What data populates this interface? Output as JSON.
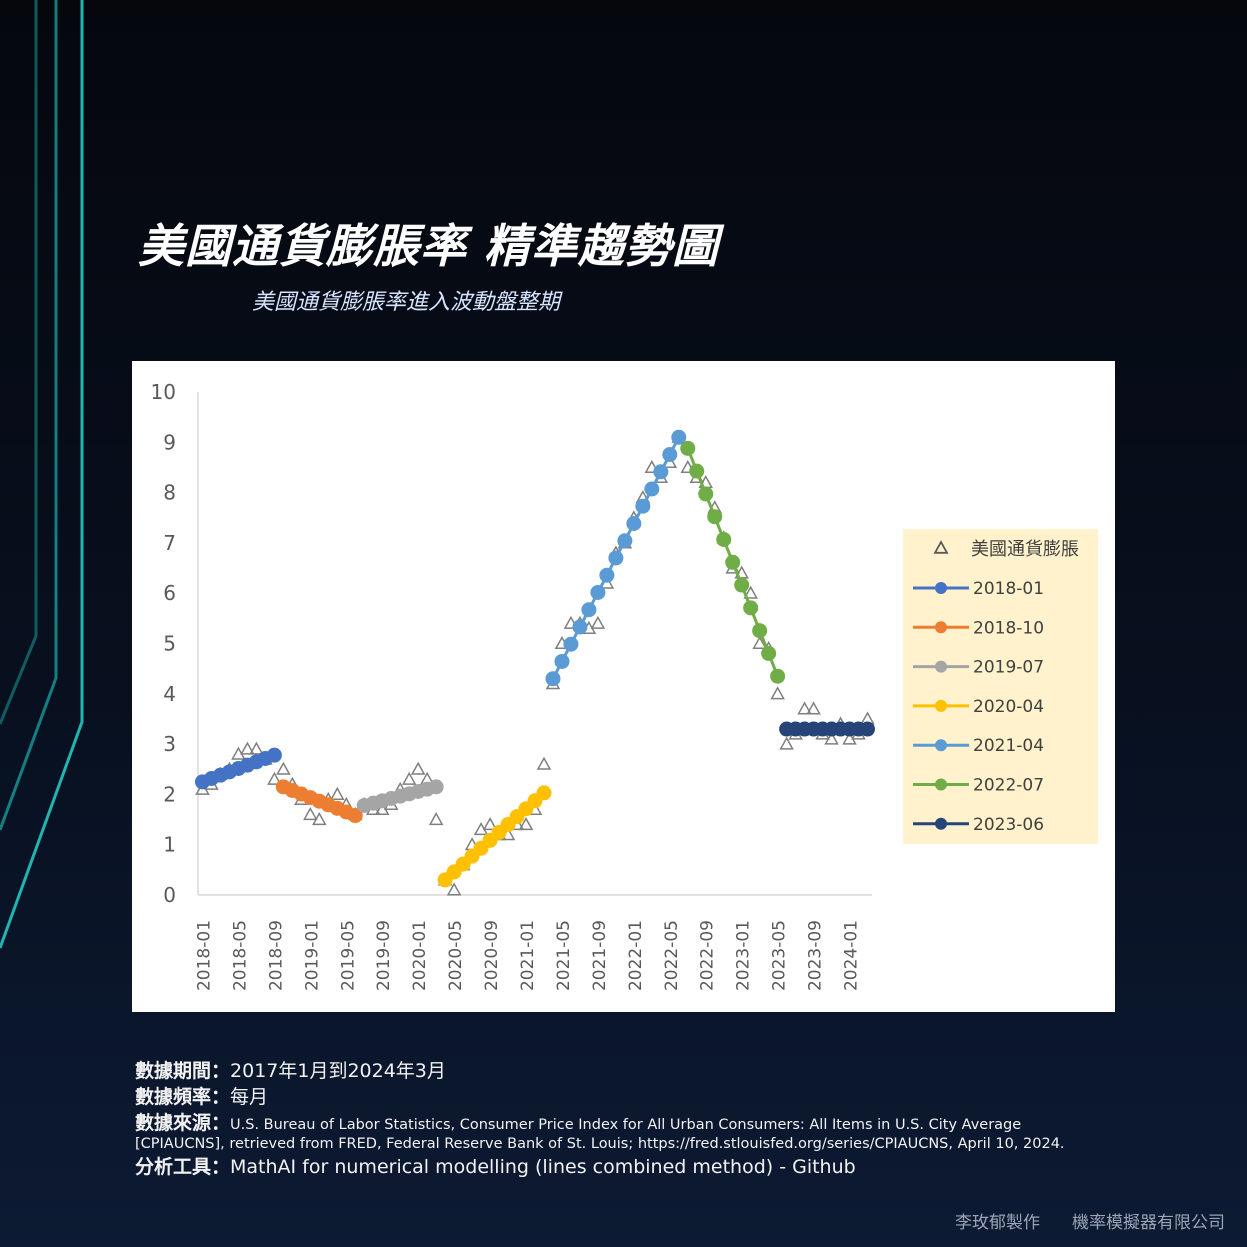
{
  "header": {
    "title": "美國通貨膨脹率 精準趨勢圖",
    "subtitle": "美國通貨膨脹率進入波動盤整期"
  },
  "chart_data": {
    "type": "scatter",
    "title": "",
    "xlabel": "",
    "ylabel": "",
    "ylim": [
      0,
      10
    ],
    "y_ticks": [
      "0",
      "1",
      "2",
      "3",
      "4",
      "5",
      "6",
      "7",
      "8",
      "9",
      "10"
    ],
    "x_ticks": [
      "2018-01",
      "2018-05",
      "2018-09",
      "2019-01",
      "2019-05",
      "2019-09",
      "2020-01",
      "2020-05",
      "2020-09",
      "2021-01",
      "2021-05",
      "2021-09",
      "2022-01",
      "2022-05",
      "2022-09",
      "2023-01",
      "2023-05",
      "2023-09",
      "2024-01"
    ],
    "x_range": [
      "2018-01",
      "2024-03"
    ],
    "grid": false,
    "legend_placement": "right",
    "observed": {
      "name": "美國通貨膨脹",
      "marker": "triangle-open",
      "color": "#7f7f7f",
      "x": [
        "2018-01",
        "2018-02",
        "2018-03",
        "2018-04",
        "2018-05",
        "2018-06",
        "2018-07",
        "2018-08",
        "2018-09",
        "2018-10",
        "2018-11",
        "2018-12",
        "2019-01",
        "2019-02",
        "2019-03",
        "2019-04",
        "2019-05",
        "2019-06",
        "2019-07",
        "2019-08",
        "2019-09",
        "2019-10",
        "2019-11",
        "2019-12",
        "2020-01",
        "2020-02",
        "2020-03",
        "2020-04",
        "2020-05",
        "2020-06",
        "2020-07",
        "2020-08",
        "2020-09",
        "2020-10",
        "2020-11",
        "2020-12",
        "2021-01",
        "2021-02",
        "2021-03",
        "2021-04",
        "2021-05",
        "2021-06",
        "2021-07",
        "2021-08",
        "2021-09",
        "2021-10",
        "2021-11",
        "2021-12",
        "2022-01",
        "2022-02",
        "2022-03",
        "2022-04",
        "2022-05",
        "2022-06",
        "2022-07",
        "2022-08",
        "2022-09",
        "2022-10",
        "2022-11",
        "2022-12",
        "2023-01",
        "2023-02",
        "2023-03",
        "2023-04",
        "2023-05",
        "2023-06",
        "2023-07",
        "2023-08",
        "2023-09",
        "2023-10",
        "2023-11",
        "2023-12",
        "2024-01",
        "2024-02",
        "2024-03"
      ],
      "y": [
        2.1,
        2.2,
        2.4,
        2.5,
        2.8,
        2.9,
        2.9,
        2.7,
        2.3,
        2.5,
        2.2,
        1.9,
        1.6,
        1.5,
        1.9,
        2.0,
        1.8,
        1.6,
        1.8,
        1.7,
        1.7,
        1.8,
        2.1,
        2.3,
        2.5,
        2.3,
        1.5,
        0.3,
        0.1,
        0.6,
        1.0,
        1.3,
        1.4,
        1.2,
        1.2,
        1.4,
        1.4,
        1.7,
        2.6,
        4.2,
        5.0,
        5.4,
        5.4,
        5.3,
        5.4,
        6.2,
        6.8,
        7.0,
        7.5,
        7.9,
        8.5,
        8.3,
        8.6,
        9.1,
        8.5,
        8.3,
        8.2,
        7.7,
        7.1,
        6.5,
        6.4,
        6.0,
        5.0,
        4.9,
        4.0,
        3.0,
        3.2,
        3.7,
        3.7,
        3.2,
        3.1,
        3.4,
        3.1,
        3.2,
        3.5
      ]
    },
    "series": [
      {
        "name": "2018-01",
        "color": "#4472c4",
        "x_start": "2018-01",
        "x_end": "2018-09",
        "y_start": 2.25,
        "y_end": 2.78
      },
      {
        "name": "2018-10",
        "color": "#ed7d31",
        "x_start": "2018-10",
        "x_end": "2019-06",
        "y_start": 2.15,
        "y_end": 1.58
      },
      {
        "name": "2019-07",
        "color": "#a5a5a5",
        "x_start": "2019-07",
        "x_end": "2020-03",
        "y_start": 1.78,
        "y_end": 2.15
      },
      {
        "name": "2020-04",
        "color": "#ffc000",
        "x_start": "2020-04",
        "x_end": "2021-03",
        "y_start": 0.3,
        "y_end": 2.03
      },
      {
        "name": "2021-04",
        "color": "#5b9bd5",
        "x_start": "2021-04",
        "x_end": "2022-06",
        "y_start": 4.3,
        "y_end": 9.1
      },
      {
        "name": "2022-07",
        "color": "#70ad47",
        "x_start": "2022-07",
        "x_end": "2023-05",
        "y_start": 8.88,
        "y_end": 4.35
      },
      {
        "name": "2023-06",
        "color": "#264478",
        "x_start": "2023-06",
        "x_end": "2024-03",
        "y_start": 3.3,
        "y_end": 3.3
      }
    ]
  },
  "footer": {
    "period_label": "數據期間：",
    "period_value": "2017年1月到2024年3月",
    "freq_label": "數據頻率：",
    "freq_value": "每月",
    "source_label": "數據來源：",
    "source_value": "U.S. Bureau of Labor Statistics, Consumer Price Index for All Urban Consumers: All Items in U.S. City Average",
    "source_value_2": "[CPIAUCNS], retrieved from FRED, Federal Reserve Bank of St. Louis; https://fred.stlouisfed.org/series/CPIAUCNS, April 10, 2024.",
    "tool_label": "分析工具：",
    "tool_value": "MathAI  for numerical modelling (lines combined method) - Github"
  },
  "credits": {
    "author": "李玫郁製作",
    "company": "機率模擬器有限公司"
  },
  "theme": {
    "accent_line": "#159c9a",
    "legend_bg": "#fff2cc",
    "axis_color": "#d9d9d9",
    "tick_text": "#595959"
  }
}
